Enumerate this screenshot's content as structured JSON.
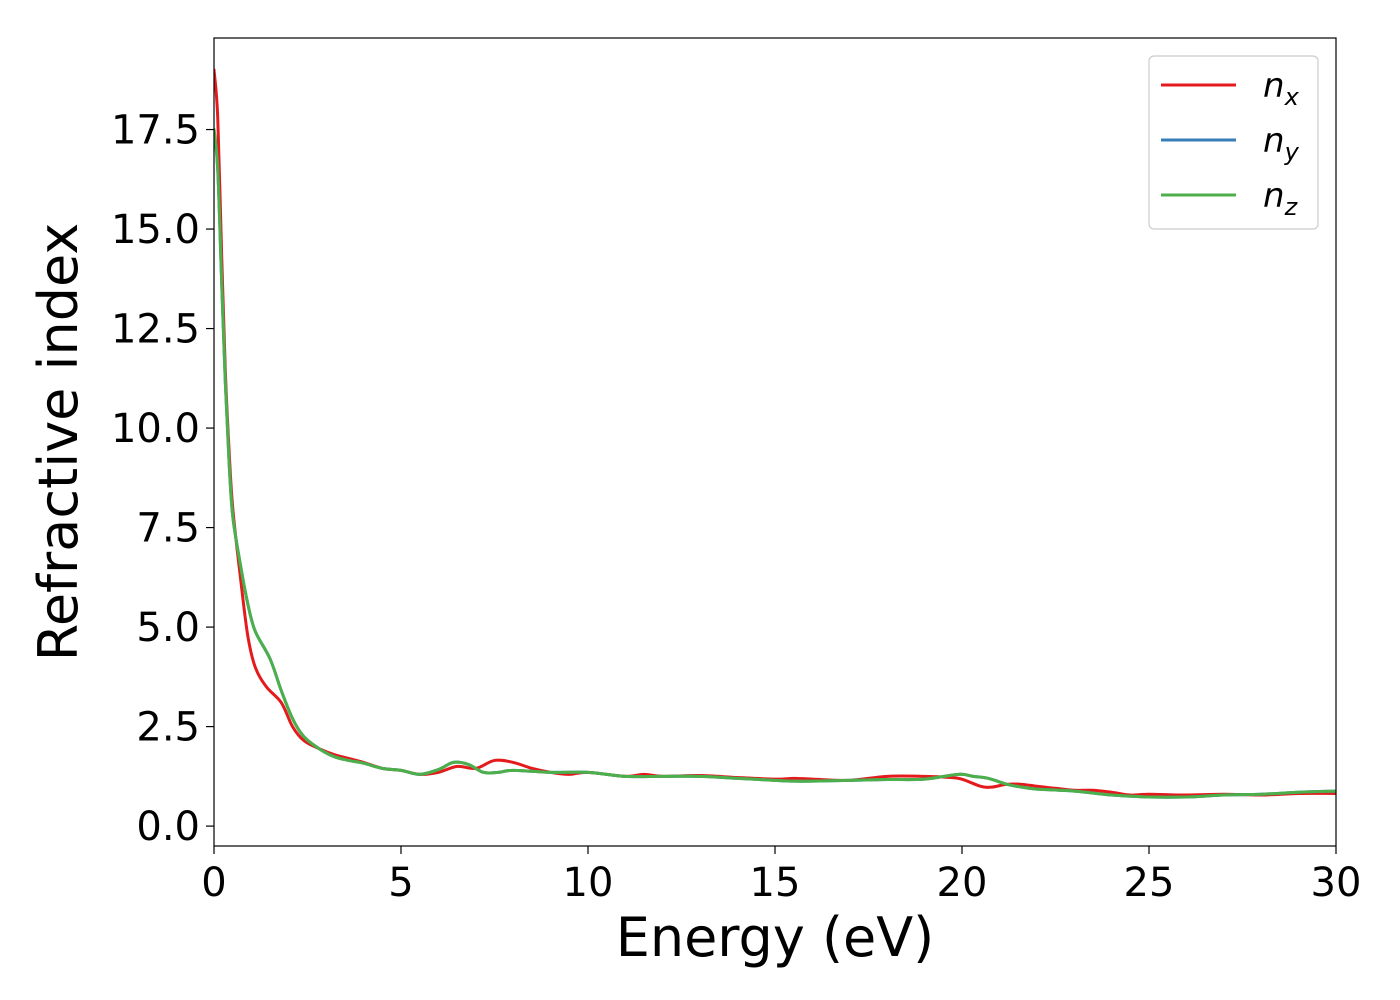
{
  "chart_data": {
    "type": "line",
    "xlabel": "Energy (eV)",
    "ylabel": "Refractive index",
    "xlim": [
      0,
      30
    ],
    "ylim": [
      -0.5,
      19.8
    ],
    "xticks": [
      0,
      5,
      10,
      15,
      20,
      25,
      30
    ],
    "yticks": [
      0.0,
      2.5,
      5.0,
      7.5,
      10.0,
      12.5,
      15.0,
      17.5
    ],
    "xtick_labels": [
      "0",
      "5",
      "10",
      "15",
      "20",
      "25",
      "30"
    ],
    "ytick_labels": [
      "0.0",
      "2.5",
      "5.0",
      "7.5",
      "10.0",
      "12.5",
      "15.0",
      "17.5"
    ],
    "grid": false,
    "legend_position": "top-right",
    "series": [
      {
        "name": "n",
        "subscript": "x",
        "color": "#e41a1c",
        "x": [
          0,
          0.1,
          0.2,
          0.3,
          0.4,
          0.5,
          0.7,
          0.9,
          1.1,
          1.4,
          1.8,
          2.1,
          2.4,
          2.8,
          3.2,
          3.6,
          4.0,
          4.5,
          5.0,
          5.5,
          6.0,
          6.5,
          7.0,
          7.5,
          8.0,
          8.5,
          9.0,
          9.5,
          10.0,
          11.0,
          11.5,
          12.0,
          13.0,
          14.0,
          15.0,
          15.5,
          16.0,
          17.0,
          18.0,
          19.0,
          19.7,
          20.0,
          20.5,
          20.8,
          21.2,
          21.6,
          22.0,
          22.5,
          23.0,
          23.5,
          24.0,
          24.5,
          25.0,
          26.0,
          27.0,
          28.0,
          29.0,
          30.0
        ],
        "y": [
          19.0,
          17.8,
          14.5,
          11.5,
          9.5,
          8.0,
          6.3,
          4.8,
          4.0,
          3.5,
          3.1,
          2.5,
          2.15,
          1.95,
          1.8,
          1.7,
          1.6,
          1.45,
          1.4,
          1.3,
          1.35,
          1.5,
          1.45,
          1.65,
          1.6,
          1.45,
          1.35,
          1.3,
          1.35,
          1.25,
          1.3,
          1.25,
          1.27,
          1.22,
          1.18,
          1.2,
          1.18,
          1.15,
          1.25,
          1.25,
          1.22,
          1.18,
          1.0,
          0.98,
          1.05,
          1.05,
          1.0,
          0.95,
          0.9,
          0.9,
          0.85,
          0.78,
          0.8,
          0.78,
          0.8,
          0.78,
          0.82,
          0.82
        ]
      },
      {
        "name": "n",
        "subscript": "y",
        "color": "#377eb8",
        "x": [
          0,
          0.1,
          0.2,
          0.3,
          0.4,
          0.5,
          0.7,
          0.9,
          1.1,
          1.5,
          1.8,
          2.1,
          2.4,
          2.8,
          3.2,
          3.6,
          4.0,
          4.5,
          5.0,
          5.5,
          6.0,
          6.4,
          6.8,
          7.2,
          7.6,
          8.0,
          9.0,
          10.0,
          11.0,
          12.0,
          13.0,
          14.0,
          15.0,
          15.5,
          16.0,
          17.0,
          18.0,
          19.0,
          19.9,
          20.3,
          20.7,
          21.2,
          21.6,
          22.0,
          23.0,
          24.0,
          25.0,
          26.0,
          27.0,
          28.0,
          29.0,
          30.0
        ],
        "y": [
          17.5,
          16.5,
          13.8,
          11.2,
          9.2,
          7.8,
          6.6,
          5.6,
          4.9,
          4.2,
          3.4,
          2.7,
          2.25,
          1.95,
          1.75,
          1.65,
          1.58,
          1.45,
          1.4,
          1.3,
          1.42,
          1.6,
          1.55,
          1.35,
          1.35,
          1.4,
          1.35,
          1.35,
          1.25,
          1.25,
          1.25,
          1.2,
          1.15,
          1.13,
          1.13,
          1.15,
          1.17,
          1.18,
          1.3,
          1.25,
          1.2,
          1.05,
          0.98,
          0.93,
          0.88,
          0.78,
          0.73,
          0.73,
          0.78,
          0.8,
          0.85,
          0.88
        ]
      },
      {
        "name": "n",
        "subscript": "z",
        "color": "#4daf4a",
        "x": [
          0,
          0.1,
          0.2,
          0.3,
          0.4,
          0.5,
          0.7,
          0.9,
          1.1,
          1.5,
          1.8,
          2.1,
          2.4,
          2.8,
          3.2,
          3.6,
          4.0,
          4.5,
          5.0,
          5.5,
          6.0,
          6.4,
          6.8,
          7.2,
          7.6,
          8.0,
          9.0,
          10.0,
          11.0,
          12.0,
          13.0,
          14.0,
          15.0,
          15.5,
          16.0,
          17.0,
          18.0,
          19.0,
          19.9,
          20.3,
          20.7,
          21.2,
          21.6,
          22.0,
          23.0,
          24.0,
          25.0,
          26.0,
          27.0,
          28.0,
          29.0,
          30.0
        ],
        "y": [
          17.5,
          16.5,
          13.8,
          11.2,
          9.2,
          7.8,
          6.6,
          5.6,
          4.9,
          4.2,
          3.4,
          2.7,
          2.25,
          1.95,
          1.75,
          1.65,
          1.58,
          1.45,
          1.4,
          1.3,
          1.42,
          1.6,
          1.55,
          1.35,
          1.35,
          1.4,
          1.35,
          1.35,
          1.25,
          1.25,
          1.25,
          1.2,
          1.15,
          1.13,
          1.13,
          1.15,
          1.17,
          1.18,
          1.3,
          1.25,
          1.2,
          1.05,
          0.98,
          0.93,
          0.88,
          0.78,
          0.73,
          0.73,
          0.78,
          0.8,
          0.85,
          0.88
        ]
      }
    ]
  }
}
